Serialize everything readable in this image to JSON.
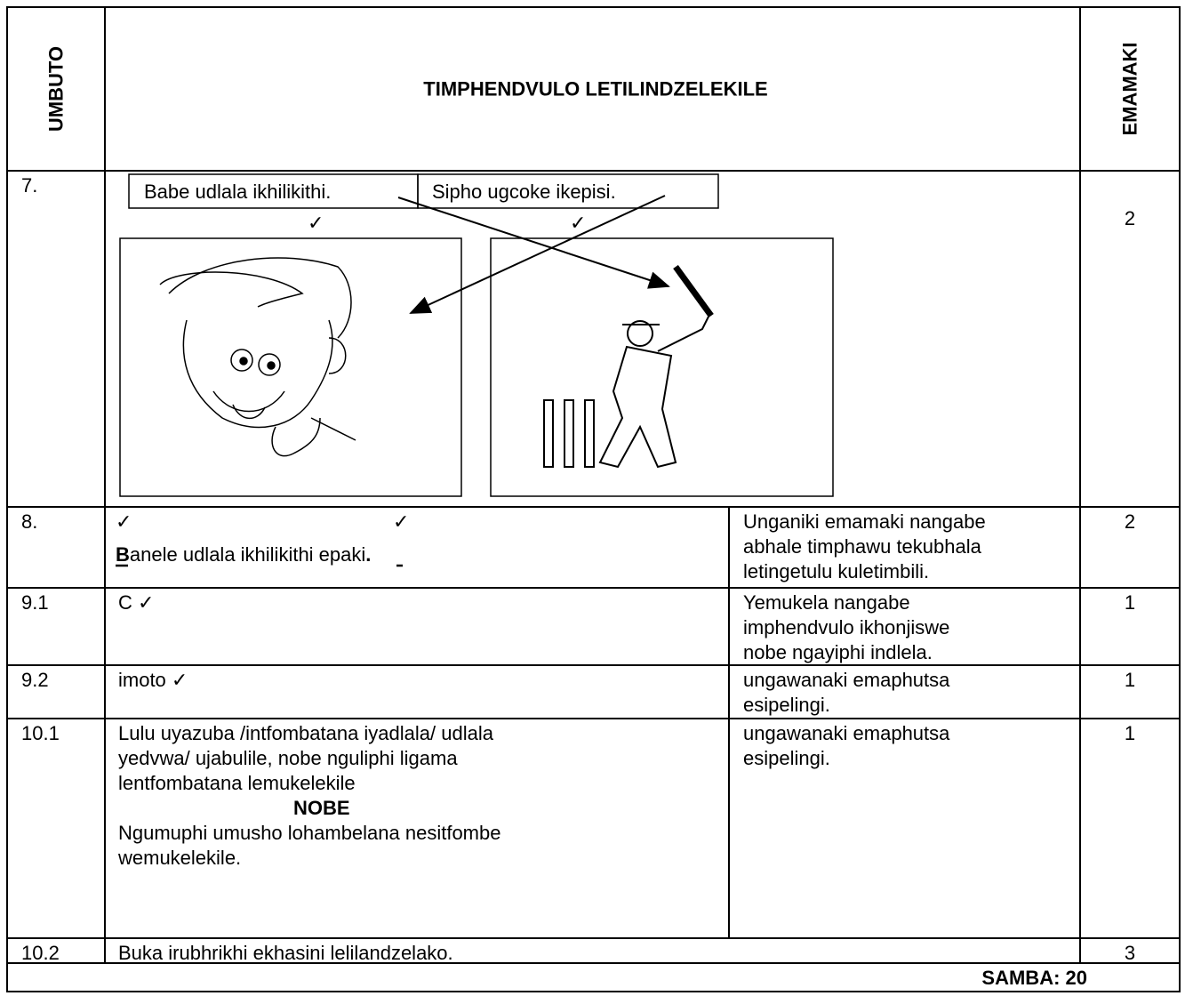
{
  "header": {
    "question": "UMBUTO",
    "answer": "TIMPHENDVULO LETILINDZELEKILE",
    "marks": "EMAMAKI"
  },
  "rows": [
    {
      "number": "7.",
      "boxes": [
        "Babe udlala ikhilikithi.",
        "Sipho ugcoke ikepisi."
      ],
      "ticks": [
        "✓",
        "✓"
      ],
      "marks": 2
    },
    {
      "number": "8.",
      "ticks": [
        "✓",
        "✓"
      ],
      "answer": [
        "B",
        "anele udlala ikhilikithi epaki",
        "."
      ],
      "note": [
        "Unganiki emamaki nangabe",
        "abhale timphawu tekubhala",
        "letingetulu kuletimbili."
      ],
      "marks": 2
    },
    {
      "number": "9.1",
      "answer": [
        "C ✓"
      ],
      "note": [
        "Yemukela nangabe",
        "imphendvulo ikhonjiswe",
        "nobe ngayiphi indlela."
      ],
      "marks": 1
    },
    {
      "number": "9.2",
      "answer": [
        "imoto ✓"
      ],
      "note": [
        "ungawanaki emaphutsa",
        "esipelingi."
      ],
      "marks": 1
    },
    {
      "number": "10.1",
      "answer": [
        "Lulu uyazuba /intfombatana iyadlala/ udlala",
        "yedvwa/ ujabulile, nobe nguliphi ligama",
        "lentfombatana lemukelekile",
        "NOBE",
        "Ngumuphi umusho lohambelana nesitfombe",
        "wemukelekile."
      ],
      "note": [
        "ungawanaki emaphutsa",
        "esipelingi."
      ],
      "marks": 1
    },
    {
      "number": "10.2",
      "answer": [
        "Buka irubhrikhi ekhasini lelilandzelako."
      ],
      "marks": 3
    }
  ],
  "total": "SAMBA: 20"
}
